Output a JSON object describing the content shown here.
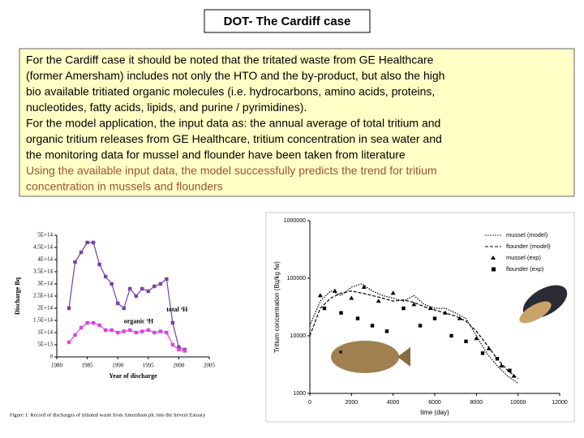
{
  "header": {
    "title": "DOT- The Cardiff case"
  },
  "text": {
    "paragraphs": [
      {
        "color": "#000000",
        "lines": [
          "For the Cardiff case it should be noted that the tritated waste from GE Healthcare",
          "(former Amersham) includes not only the HTO and the by-product, but also the high",
          "bio available tritiated organic molecules (i.e. hydrocarbons, amino acids, proteins,",
          "nucleotides, fatty acids, lipids, and purine / pyrimidines)."
        ]
      },
      {
        "color": "#000000",
        "lines": [
          "For the model application, the input data as: the annual average of total tritium and",
          "organic tritium releases from GE Healthcare, tritium concentration in sea water and",
          "the monitoring data for mussel and flounder have been taken from literature"
        ]
      },
      {
        "color": "#a0522d",
        "lines": [
          "Using the available input data, the model successfully predicts the trend for tritium",
          "concentration in mussels and flounders"
        ]
      }
    ]
  },
  "figure_left": {
    "ylabel": "Discharge Bq",
    "xlabel": "Year of discharge",
    "caption": "Figure 1: Record of discharges of tritiated waste from Amersham plc into the Severn Estuary",
    "xlim": [
      1980,
      2005
    ],
    "xticks": [
      1980,
      1985,
      1990,
      1995,
      2000,
      2005
    ],
    "ylim": [
      0,
      500000000000000
    ],
    "yticks": [
      {
        "value": 0,
        "label": "0"
      },
      {
        "value": 50000000000000,
        "label": "5E+13"
      },
      {
        "value": 100000000000000,
        "label": "1E+14"
      },
      {
        "value": 150000000000000,
        "label": "1.5E+14"
      },
      {
        "value": 200000000000000,
        "label": "2E+14"
      },
      {
        "value": 250000000000000,
        "label": "2.5E+14"
      },
      {
        "value": 300000000000000,
        "label": "3E+14"
      },
      {
        "value": 350000000000000,
        "label": "3.5E+14"
      },
      {
        "value": 400000000000000,
        "label": "4E+14"
      },
      {
        "value": 450000000000000,
        "label": "4.5E+14"
      },
      {
        "value": 500000000000000,
        "label": "5E+14"
      }
    ],
    "series": [
      {
        "name": "total ³H",
        "color": "#7b3fa8",
        "x": [
          1982,
          1983,
          1984,
          1985,
          1986,
          1987,
          1988,
          1989,
          1990,
          1991,
          1992,
          1993,
          1994,
          1995,
          1996,
          1997,
          1998,
          1999,
          2000,
          2001
        ],
        "values": [
          200000000000000,
          390000000000000,
          430000000000000,
          470000000000000,
          470000000000000,
          380000000000000,
          330000000000000,
          300000000000000,
          220000000000000,
          200000000000000,
          280000000000000,
          250000000000000,
          280000000000000,
          270000000000000,
          290000000000000,
          300000000000000,
          320000000000000,
          140000000000000,
          40000000000000,
          30000000000000
        ]
      },
      {
        "name": "organic ³H",
        "color": "#e040e0",
        "x": [
          1982,
          1983,
          1984,
          1985,
          1986,
          1987,
          1988,
          1989,
          1990,
          1991,
          1992,
          1993,
          1994,
          1995,
          1996,
          1997,
          1998,
          1999,
          2000,
          2001
        ],
        "values": [
          60000000000000,
          90000000000000,
          120000000000000,
          140000000000000,
          140000000000000,
          130000000000000,
          110000000000000,
          110000000000000,
          100000000000000,
          105000000000000,
          110000000000000,
          100000000000000,
          105000000000000,
          110000000000000,
          100000000000000,
          105000000000000,
          100000000000000,
          50000000000000,
          30000000000000,
          25000000000000
        ]
      }
    ]
  },
  "figure_right": {
    "ylabel": "Tritium concentration (Bq/kg fw)",
    "xlabel": "time (day)",
    "log_scale": true,
    "xlim": [
      0,
      12000
    ],
    "xticks": [
      0,
      2000,
      4000,
      6000,
      8000,
      10000,
      12000
    ],
    "ylim": [
      1000,
      1000000
    ],
    "yticks": [
      1000,
      10000,
      100000,
      1000000
    ],
    "series": [
      {
        "name": "mussel (model)",
        "color": "#000000",
        "style": "dotted",
        "x": [
          0,
          500,
          1000,
          1500,
          2000,
          2500,
          3000,
          3500,
          4000,
          4500,
          5000,
          5500,
          6000,
          6500,
          7000,
          7500,
          8000,
          8500,
          9000,
          9500,
          10000
        ],
        "values": [
          15000,
          40000,
          60000,
          50000,
          70000,
          80000,
          60000,
          50000,
          45000,
          40000,
          50000,
          35000,
          30000,
          30000,
          25000,
          20000,
          10000,
          5000,
          3000,
          2000,
          1500
        ]
      },
      {
        "name": "flounder (model)",
        "color": "#000000",
        "style": "dashed",
        "x": [
          0,
          500,
          1000,
          1500,
          2000,
          2500,
          3000,
          3500,
          4000,
          4500,
          5000,
          5500,
          6000,
          6500,
          7000,
          7500,
          8000,
          8500,
          9000,
          9500,
          10000
        ],
        "values": [
          10000,
          30000,
          45000,
          55000,
          60000,
          55000,
          50000,
          45000,
          40000,
          42000,
          38000,
          32000,
          28000,
          25000,
          22000,
          18000,
          12000,
          7000,
          4000,
          2500,
          1800
        ]
      },
      {
        "name": "mussel (exp)",
        "color": "#000000",
        "marker": "triangle",
        "x": [
          500,
          1200,
          2000,
          2600,
          3300,
          4000,
          5000,
          5800,
          6500,
          7200,
          8000,
          8600,
          9200,
          9800
        ],
        "values": [
          50000,
          60000,
          45000,
          70000,
          40000,
          55000,
          35000,
          30000,
          25000,
          20000,
          9000,
          6000,
          3000,
          2000
        ]
      },
      {
        "name": "flounder (exp)",
        "color": "#000000",
        "marker": "square",
        "x": [
          700,
          1500,
          2300,
          3000,
          3700,
          4500,
          5300,
          6000,
          6800,
          7500,
          8300,
          9000,
          9600
        ],
        "values": [
          30000,
          25000,
          20000,
          15000,
          12000,
          30000,
          15000,
          20000,
          10000,
          8000,
          5000,
          4000,
          2500
        ]
      }
    ]
  }
}
